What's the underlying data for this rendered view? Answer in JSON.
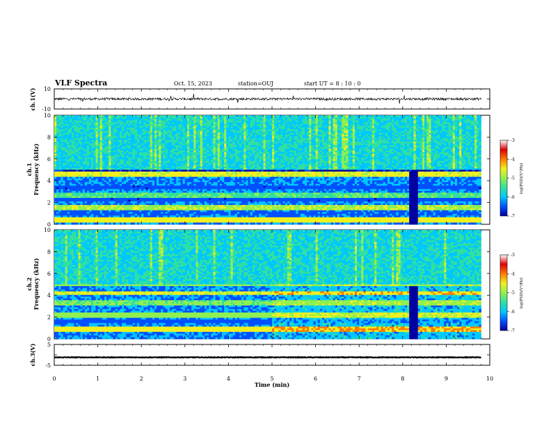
{
  "header": {
    "title": "VLF Spectra",
    "date": "Oct. 15, 2023",
    "station": "station=OUJ",
    "start_ut": "start UT =  8 : 10 : 0"
  },
  "chart_data": [
    {
      "type": "line",
      "name": "ch1-waveform",
      "ylabel": "ch.1(V)",
      "xlim": [
        0,
        10
      ],
      "ylim": [
        -10,
        10
      ],
      "yticks": [
        "10",
        "-10"
      ],
      "level": 0,
      "noise_amplitude": 1.2,
      "x_end": 9.8,
      "color": "#000000"
    },
    {
      "type": "heatmap",
      "name": "ch1-spectrogram",
      "ylabel": "ch.1\nFrequency (kHz)",
      "xlim": [
        0,
        9.8
      ],
      "ylim": [
        0,
        10
      ],
      "yticks": [
        "0",
        "2",
        "4",
        "6",
        "8",
        "10"
      ],
      "colorscale": [
        "#0000a0",
        "#0050ff",
        "#00c8ff",
        "#30e0a0",
        "#90f050",
        "#f0f020",
        "#ff7a00",
        "#e00000",
        "#ffffff"
      ],
      "gap_interval_min": [
        8.15,
        8.35
      ],
      "colorbar": {
        "label": "log(PSD)(V²/Hz)",
        "range": [
          -7,
          -3
        ],
        "ticks": [
          "-3",
          "-4",
          "-5",
          "-6",
          "-7"
        ]
      }
    },
    {
      "type": "heatmap",
      "name": "ch2-spectrogram",
      "ylabel": "ch.2\nFrequency (kHz)",
      "xlim": [
        0,
        9.8
      ],
      "ylim": [
        0,
        10
      ],
      "yticks": [
        "0",
        "2",
        "4",
        "6",
        "8",
        "10"
      ],
      "colorscale": [
        "#0000a0",
        "#0050ff",
        "#00c8ff",
        "#30e0a0",
        "#90f050",
        "#f0f020",
        "#ff7a00",
        "#e00000",
        "#ffffff"
      ],
      "gap_interval_min": [
        8.15,
        8.35
      ],
      "colorbar": {
        "label": "log(PSD)(V²/Hz)",
        "range": [
          -7,
          -3
        ],
        "ticks": [
          "-3",
          "-4",
          "-5",
          "-6",
          "-7"
        ]
      }
    },
    {
      "type": "line",
      "name": "ch3-waveform",
      "ylabel": "ch.3(V)",
      "xlabel": "Time (min)",
      "xlim": [
        0,
        10
      ],
      "ylim": [
        -5,
        5
      ],
      "yticks": [
        "5",
        "-5"
      ],
      "xticks": [
        "0",
        "1",
        "2",
        "3",
        "4",
        "5",
        "6",
        "7",
        "8",
        "9",
        "10"
      ],
      "level": -1.2,
      "noise_amplitude": 0.15,
      "x_end": 9.8,
      "color": "#000000"
    }
  ]
}
